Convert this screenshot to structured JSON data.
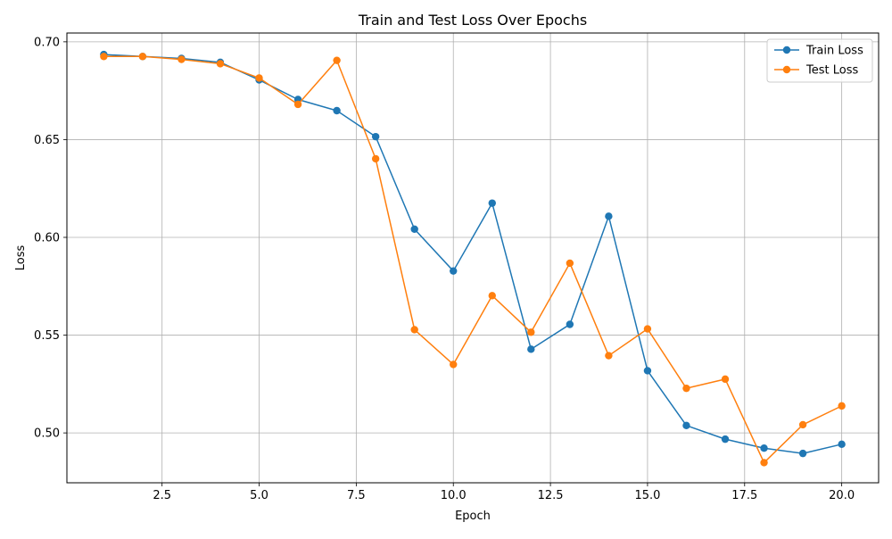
{
  "chart_data": {
    "type": "line",
    "title": "Train and Test Loss Over Epochs",
    "xlabel": "Epoch",
    "ylabel": "Loss",
    "xlim": [
      0.05,
      20.95
    ],
    "ylim": [
      0.4745,
      0.7045
    ],
    "xticks": [
      2.5,
      5.0,
      7.5,
      10.0,
      12.5,
      15.0,
      17.5,
      20.0
    ],
    "xtick_labels": [
      "2.5",
      "5.0",
      "7.5",
      "10.0",
      "12.5",
      "15.0",
      "17.5",
      "20.0"
    ],
    "yticks": [
      0.5,
      0.55,
      0.6,
      0.65,
      0.7
    ],
    "ytick_labels": [
      "0.50",
      "0.55",
      "0.60",
      "0.65",
      "0.70"
    ],
    "grid": true,
    "legend_position": "top-right",
    "x": [
      1,
      2,
      3,
      4,
      5,
      6,
      7,
      8,
      9,
      10,
      11,
      12,
      13,
      14,
      15,
      16,
      17,
      18,
      19,
      20
    ],
    "series": [
      {
        "name": "Train Loss",
        "color": "#1f77b4",
        "marker": "circle",
        "values": [
          0.6935,
          0.6925,
          0.6915,
          0.6895,
          0.6805,
          0.6705,
          0.6648,
          0.6515,
          0.6042,
          0.5828,
          0.6175,
          0.5428,
          0.5555,
          0.6108,
          0.5318,
          0.5038,
          0.4968,
          0.4922,
          0.4895,
          0.4942
        ]
      },
      {
        "name": "Test Loss",
        "color": "#ff7f0e",
        "marker": "circle",
        "values": [
          0.6925,
          0.6925,
          0.691,
          0.6888,
          0.6815,
          0.668,
          0.6905,
          0.6402,
          0.5528,
          0.535,
          0.5702,
          0.5515,
          0.5868,
          0.5395,
          0.5532,
          0.5228,
          0.5275,
          0.4848,
          0.5042,
          0.5138
        ]
      }
    ]
  }
}
